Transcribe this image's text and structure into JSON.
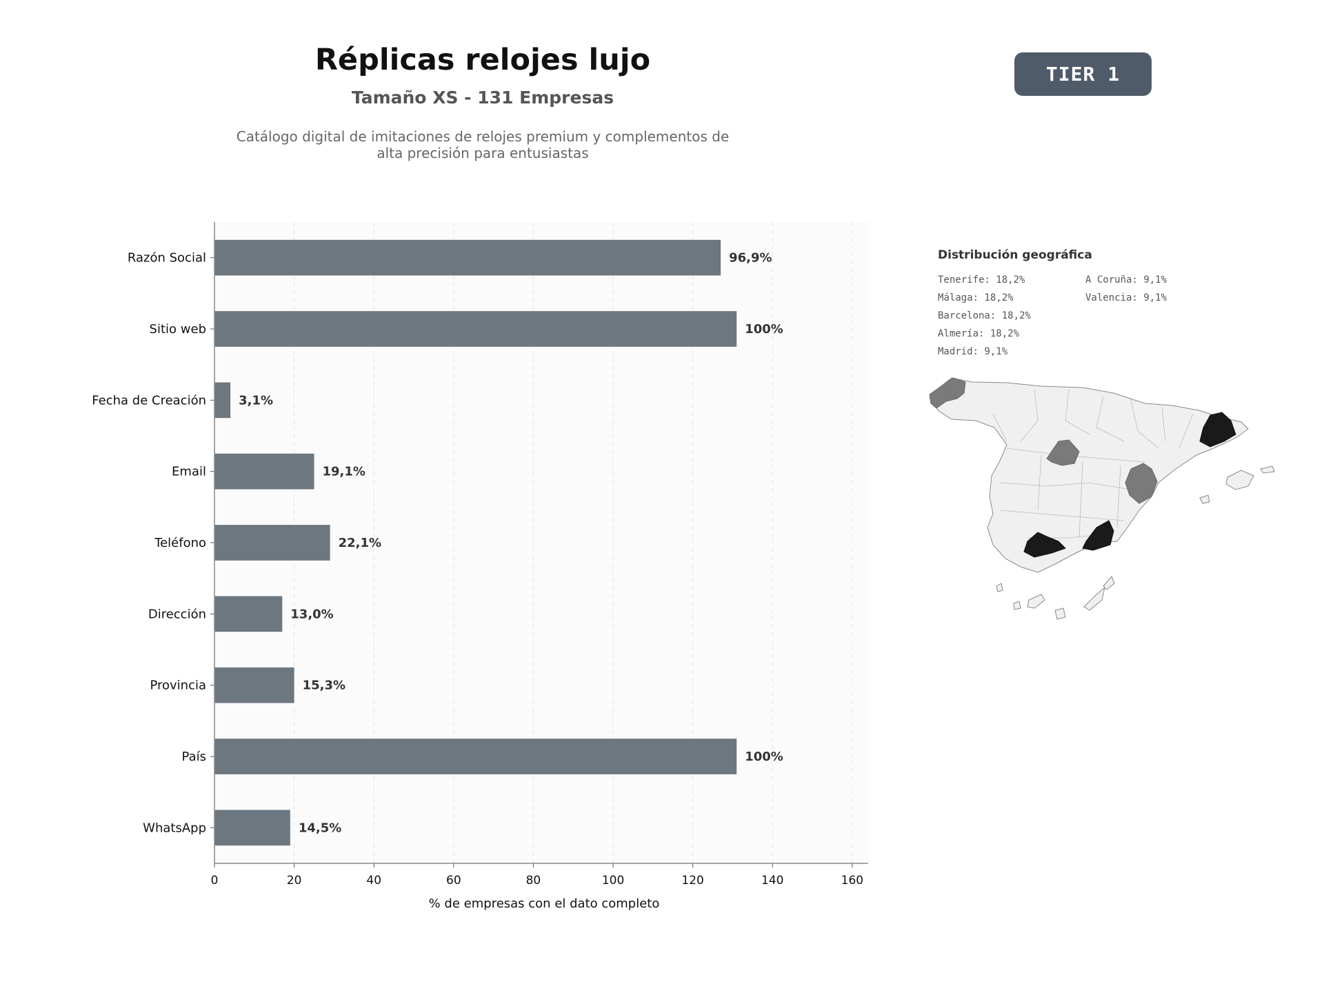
{
  "header": {
    "title": "Réplicas relojes lujo",
    "subtitle": "Tamaño XS - 131 Empresas",
    "description_line1": "Catálogo digital de imitaciones de relojes premium y complementos de",
    "description_line2": "alta precisión para entusiastas",
    "tier_badge": "TIER 1"
  },
  "chart_data": {
    "type": "bar",
    "orientation": "horizontal",
    "categories": [
      "Razón Social",
      "Sitio web",
      "Fecha de Creación",
      "Email",
      "Teléfono",
      "Dirección",
      "Provincia",
      "País",
      "WhatsApp"
    ],
    "values": [
      127,
      131,
      4,
      25,
      29,
      17,
      20,
      131,
      19
    ],
    "data_labels": [
      "96,9%",
      "100%",
      "3,1%",
      "19,1%",
      "22,1%",
      "13,0%",
      "15,3%",
      "100%",
      "14,5%"
    ],
    "xlabel": "% de empresas con el dato completo",
    "xlim": [
      0,
      164
    ],
    "xticks": [
      0,
      20,
      40,
      60,
      80,
      100,
      120,
      140,
      160
    ],
    "grid": "vertical dashed",
    "bar_color": "#6c7780"
  },
  "geo": {
    "title": "Distribución geográfica",
    "items": [
      "Tenerife: 18,2%",
      "Málaga: 18,2%",
      "Barcelona: 18,2%",
      "Almería: 18,2%",
      "Madrid: 9,1%",
      "A Coruña: 9,1%",
      "Valencia: 9,1%"
    ],
    "colors": {
      "high": "#1a1a1a",
      "mid": "#7a7a7a",
      "none": "#f0f0f0"
    }
  }
}
